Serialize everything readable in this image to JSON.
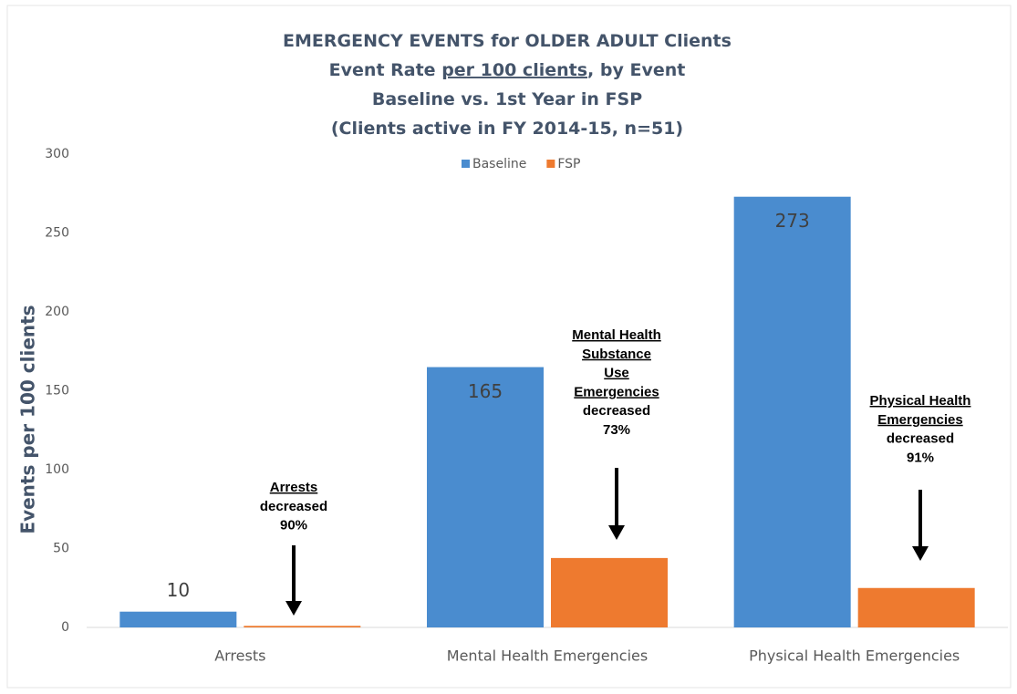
{
  "chart_data": {
    "type": "bar",
    "title_lines": [
      [
        {
          "text": "EMERGENCY EVENTS for OLDER ADULT Clients"
        }
      ],
      [
        {
          "text": "Event Rate "
        },
        {
          "text": "per 100 clients",
          "underline": true
        },
        {
          "text": ", by Event"
        }
      ],
      [
        {
          "text": "Baseline vs. 1st Year in FSP"
        }
      ],
      [
        {
          "text": "(Clients active in FY 2014-15, n=51)"
        }
      ]
    ],
    "y_label": "Events per 100 clients",
    "categories": [
      "Arrests",
      "Mental Health Emergencies",
      "Physical Health Emergencies"
    ],
    "series": [
      {
        "name": "Baseline",
        "color": "#4a8ccf",
        "values": [
          10,
          165,
          273
        ],
        "show_labels": true
      },
      {
        "name": "FSP",
        "color": "#ee7a2f",
        "values": [
          1,
          44,
          25
        ],
        "show_labels": false
      }
    ],
    "ylim": [
      0,
      300
    ],
    "yticks": [
      0,
      50,
      100,
      150,
      200,
      250,
      300
    ],
    "grid": false,
    "legend": "top",
    "annotations": [
      {
        "lines": [
          {
            "text": "Arrests",
            "underline": true
          },
          {
            "text": "decreased"
          },
          {
            "text": "90%"
          }
        ]
      },
      {
        "lines": [
          {
            "text": "Mental Health",
            "underline": true
          },
          {
            "text": "Substance",
            "underline": true
          },
          {
            "text": "Use",
            "underline": true
          },
          {
            "text": "Emergencies",
            "underline": true
          },
          {
            "text": "decreased"
          },
          {
            "text": "73%"
          }
        ]
      },
      {
        "lines": [
          {
            "text": "Physical Health",
            "underline": true
          },
          {
            "text": "Emergencies",
            "underline": true
          },
          {
            "text": "decreased"
          },
          {
            "text": "91%"
          }
        ]
      }
    ]
  }
}
